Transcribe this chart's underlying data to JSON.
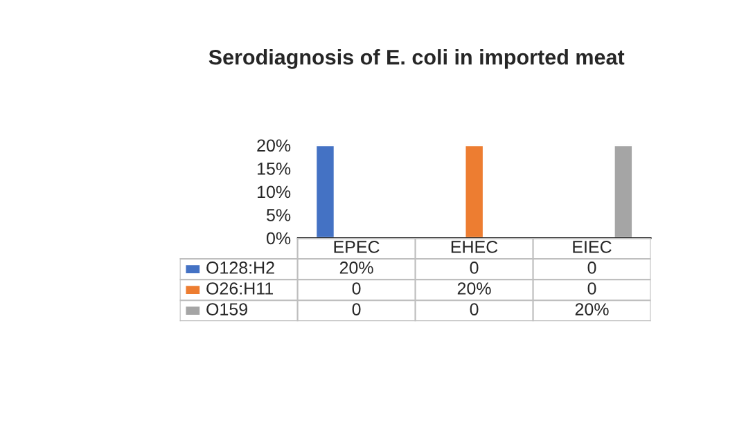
{
  "chart_data": {
    "type": "bar",
    "title": "Serodiagnosis of E. coli in imported meat",
    "categories": [
      "EPEC",
      "EHEC",
      "EIEC"
    ],
    "series": [
      {
        "name": "O128:H2",
        "color": "#4472c4",
        "values": [
          20,
          0,
          0
        ],
        "value_labels": [
          "20%",
          "0",
          "0"
        ]
      },
      {
        "name": "O26:H11",
        "color": "#ed7d31",
        "values": [
          0,
          20,
          0
        ],
        "value_labels": [
          "0",
          "20%",
          "0"
        ]
      },
      {
        "name": "O159",
        "color": "#a5a5a5",
        "values": [
          0,
          0,
          20
        ],
        "value_labels": [
          "0",
          "0",
          "20%"
        ]
      }
    ],
    "ylim": [
      0,
      20
    ],
    "yticks": [
      {
        "value": 0,
        "label": "0%"
      },
      {
        "value": 5,
        "label": "5%"
      },
      {
        "value": 10,
        "label": "10%"
      },
      {
        "value": 15,
        "label": "15%"
      },
      {
        "value": 20,
        "label": "20%"
      }
    ],
    "legend": "bottom",
    "grid": false
  }
}
